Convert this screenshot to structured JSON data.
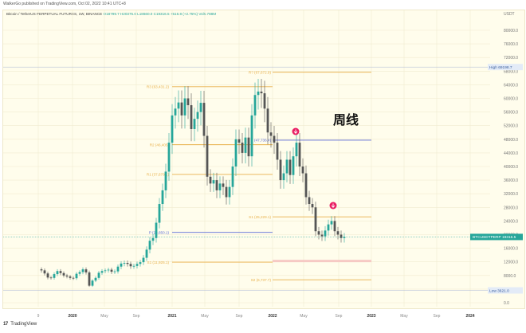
{
  "header": {
    "published": "WalkerGo published on TradingView.com, Oct 02, 2022 10:41 UTC+8",
    "symbol": "Bitcoin / TetherUS PERPETUAL FUTURES, 1W, BINANCE",
    "ohlc": "O18799.7  H20375.0  L18660.0  C19316.5  +516.8 (+2.75%)  Vol5.788M"
  },
  "watermark": "周线",
  "footer": {
    "logo_mark": "17",
    "logo_text": "TradingView"
  },
  "chart_data": {
    "type": "candlestick",
    "title": "Bitcoin / TetherUS PERPETUAL FUTURES, 1W, BINANCE",
    "currency": "USDT",
    "y_ticks": [
      "80000.0",
      "76000.0",
      "72000.0",
      "68000.0",
      "64000.0",
      "60000.0",
      "56000.0",
      "52000.0",
      "48000.0",
      "44000.0",
      "40000.0",
      "36000.0",
      "32000.0",
      "28000.0",
      "24000.0",
      "20000.0",
      "16000.0",
      "12000.0",
      "8000.0",
      "4000.0",
      "0.0"
    ],
    "x_ticks": [
      "9",
      "2020",
      "May",
      "Sep",
      "2021",
      "May",
      "Sep",
      "2022",
      "May",
      "Sep",
      "2023",
      "May",
      "Sep",
      "2024"
    ],
    "ylim": [
      0,
      84000
    ],
    "markers": {
      "high": {
        "label": "High",
        "value": "69198.7"
      },
      "low": {
        "label": "Low",
        "value": "3621.0"
      },
      "last": {
        "label": "BTCUSDTPERP",
        "value": "19316.5"
      }
    },
    "pivot_levels": [
      {
        "name": "R4",
        "label": "R? (67,672.9)",
        "value": 67672.9
      },
      {
        "name": "R3",
        "label": "R3 (63,431.2)",
        "value": 63431.2
      },
      {
        "name": "R2",
        "label": "R2 (46,405)",
        "value": 46405
      },
      {
        "name": "R1",
        "label": "R1 (37,678.1)",
        "value": 37678.1
      },
      {
        "name": "P",
        "label": "P (20,650.1)",
        "value": 20650.1
      },
      {
        "name": "S1",
        "label": "S1 (25,229.1)",
        "value": 25229.1
      },
      {
        "name": "S1_old",
        "label": "S1 (11,925.1)",
        "value": 11925.1
      },
      {
        "name": "S2",
        "label": "S2 (6,737.7)",
        "value": 6737.7
      },
      {
        "name": "level",
        "label": "(47,736.4)",
        "value": 47736.4
      }
    ],
    "annotations": [
      "周线",
      "down-arrow at ~2022 Mar",
      "down-arrow at ~2022 Aug"
    ],
    "grid": true
  },
  "colors": {
    "bull": "#26a69a",
    "bear": "#555555",
    "pivot": "#e8b04a",
    "pivot_blue": "#5b6bd6",
    "bg": "#fffdec",
    "arrow": "#e91e63",
    "last": "#26a69a"
  }
}
